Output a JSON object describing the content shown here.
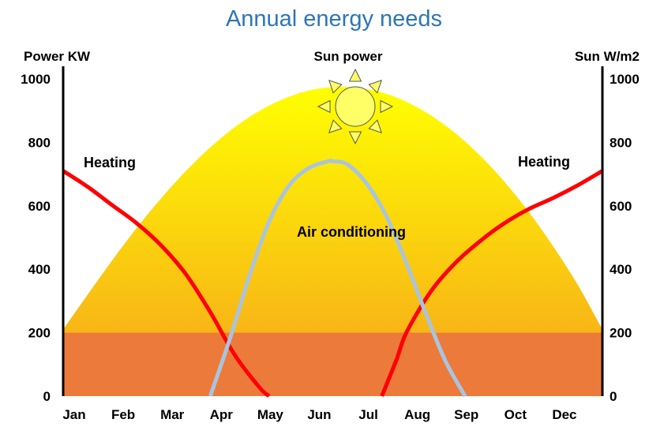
{
  "chart_data": {
    "type": "line",
    "title": "Annual energy needs",
    "ylabel_left": "Power KW",
    "ylabel_right": "Sun W/m2",
    "center_label": "Sun power",
    "ylim": [
      0,
      1000
    ],
    "yticks": [
      0,
      200,
      400,
      600,
      800,
      1000
    ],
    "xlim": [
      0,
      11
    ],
    "categories": [
      "Jan",
      "Feb",
      "Mar",
      "Apr",
      "May",
      "Jun",
      "Jul",
      "Aug",
      "Sep",
      "Oct",
      "Dec"
    ],
    "series": [
      {
        "name": "Sun power",
        "kind": "area",
        "x": [
          0,
          0.5,
          1,
          1.5,
          2,
          2.5,
          3,
          3.5,
          4,
          4.5,
          5,
          5.5,
          6,
          6.5,
          7,
          7.5,
          8,
          8.5,
          9,
          9.5,
          10,
          10.5,
          11
        ],
        "values": [
          210,
          320,
          428,
          530,
          624,
          709,
          784,
          848,
          899,
          937,
          963,
          974,
          972,
          957,
          928,
          885,
          829,
          759,
          676,
          580,
          471,
          350,
          210
        ]
      },
      {
        "name": "Heating",
        "kind": "line",
        "segments": [
          {
            "x": [
              0,
              0.5,
              1,
              1.5,
              2,
              2.5,
              3,
              3.5,
              4,
              4.2
            ],
            "values": [
              710,
              660,
              602,
              545,
              475,
              385,
              265,
              130,
              28,
              0
            ]
          },
          {
            "x": [
              6.5,
              6.8,
              7,
              7.5,
              8,
              8.5,
              9,
              9.5,
              10,
              10.5,
              11
            ],
            "values": [
              0,
              115,
              200,
              330,
              420,
              488,
              545,
              590,
              625,
              665,
              710
            ]
          }
        ]
      },
      {
        "name": "Air conditioning",
        "kind": "line",
        "x": [
          3,
          3.4,
          3.8,
          4.2,
          4.6,
          5,
          5.4,
          5.5,
          5.8,
          6.2,
          6.6,
          7,
          7.4,
          7.8,
          8.2
        ],
        "values": [
          0,
          180,
          380,
          550,
          662,
          718,
          740,
          740,
          730,
          668,
          565,
          420,
          260,
          110,
          0
        ]
      }
    ],
    "labels": {
      "heating": "Heating",
      "air_conditioning": "Air conditioning"
    },
    "colors": {
      "title": "#2e75b6",
      "heating": "#ff0000",
      "air_conditioning": "#a9c4df",
      "sun_top": "#ffff00",
      "sun_bottom": "#f6a31c",
      "base_band": "#ec7a3a",
      "sun_icon_fill": "#ffff66",
      "sun_icon_stroke": "#555555"
    },
    "icons": [
      "sun-icon"
    ]
  }
}
